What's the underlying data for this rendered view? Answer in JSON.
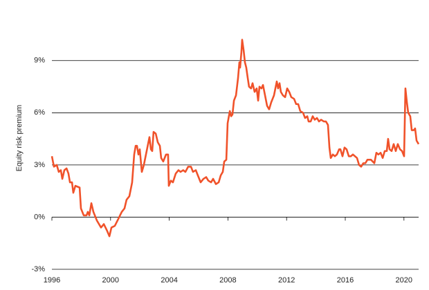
{
  "chart_data": {
    "type": "line",
    "y_label": "Equity risk premium",
    "xlim": [
      1996,
      2021
    ],
    "xticks": [
      1996,
      2000,
      2004,
      2008,
      2012,
      2016,
      2020
    ],
    "ylim": [
      -3,
      10.5
    ],
    "yticks": [
      {
        "value": -3,
        "label": "-3%"
      },
      {
        "value": 0,
        "label": "0%"
      },
      {
        "value": 3,
        "label": "3%"
      },
      {
        "value": 6,
        "label": "6%"
      },
      {
        "value": 9,
        "label": "9%"
      }
    ],
    "grid": true,
    "x": [
      1996.0,
      1996.14,
      1996.33,
      1996.47,
      1996.61,
      1996.71,
      1996.85,
      1997.0,
      1997.13,
      1997.23,
      1997.37,
      1997.46,
      1997.6,
      1997.89,
      1997.98,
      1998.17,
      1998.36,
      1998.45,
      1998.55,
      1998.69,
      1998.83,
      1999.07,
      1999.35,
      1999.54,
      1999.77,
      1999.92,
      2000.06,
      2000.29,
      2000.53,
      2000.76,
      2000.95,
      2001.09,
      2001.28,
      2001.47,
      2001.61,
      2001.71,
      2001.8,
      2001.9,
      2001.99,
      2002.13,
      2002.27,
      2002.46,
      2002.65,
      2002.75,
      2002.84,
      2002.93,
      2003.08,
      2003.22,
      2003.36,
      2003.45,
      2003.59,
      2003.78,
      2003.92,
      2003.97,
      2004.11,
      2004.25,
      2004.44,
      2004.63,
      2004.77,
      2004.95,
      2005.1,
      2005.29,
      2005.48,
      2005.62,
      2005.81,
      2005.95,
      2006.14,
      2006.33,
      2006.52,
      2006.66,
      2006.85,
      2006.99,
      2007.18,
      2007.37,
      2007.51,
      2007.65,
      2007.75,
      2007.89,
      2007.98,
      2008.13,
      2008.22,
      2008.31,
      2008.41,
      2008.55,
      2008.69,
      2008.78,
      2008.83,
      2008.92,
      2008.97,
      2009.07,
      2009.16,
      2009.25,
      2009.35,
      2009.44,
      2009.58,
      2009.68,
      2009.82,
      2009.96,
      2010.06,
      2010.15,
      2010.29,
      2010.39,
      2010.53,
      2010.67,
      2010.81,
      2010.95,
      2011.14,
      2011.33,
      2011.42,
      2011.52,
      2011.61,
      2011.75,
      2011.9,
      2012.04,
      2012.18,
      2012.32,
      2012.51,
      2012.65,
      2012.79,
      2012.93,
      2013.12,
      2013.26,
      2013.41,
      2013.5,
      2013.64,
      2013.78,
      2013.92,
      2014.07,
      2014.21,
      2014.35,
      2014.54,
      2014.68,
      2014.82,
      2014.92,
      2015.01,
      2015.15,
      2015.29,
      2015.43,
      2015.58,
      2015.67,
      2015.81,
      2015.95,
      2016.09,
      2016.24,
      2016.38,
      2016.52,
      2016.66,
      2016.8,
      2016.94,
      2017.08,
      2017.23,
      2017.37,
      2017.51,
      2017.75,
      2017.98,
      2018.12,
      2018.26,
      2018.41,
      2018.55,
      2018.69,
      2018.83,
      2018.92,
      2019.02,
      2019.16,
      2019.3,
      2019.44,
      2019.58,
      2019.73,
      2019.87,
      2020.01,
      2020.1,
      2020.2,
      2020.29,
      2020.43,
      2020.53,
      2020.67,
      2020.76,
      2020.86,
      2021.0
    ],
    "series": [
      {
        "color": "#f0522a",
        "values": [
          3.5,
          2.9,
          3.0,
          2.6,
          2.7,
          2.2,
          2.7,
          2.8,
          2.5,
          2.0,
          2.0,
          1.4,
          1.8,
          1.7,
          0.5,
          0.1,
          0.1,
          0.3,
          0.1,
          0.8,
          0.3,
          -0.2,
          -0.6,
          -0.4,
          -0.8,
          -1.1,
          -0.6,
          -0.5,
          -0.1,
          0.3,
          0.5,
          1.0,
          1.2,
          2.0,
          3.6,
          4.1,
          4.1,
          3.6,
          3.9,
          2.6,
          3.0,
          3.8,
          4.6,
          3.9,
          3.8,
          4.9,
          4.8,
          4.3,
          4.1,
          3.4,
          3.2,
          3.6,
          3.6,
          1.8,
          2.1,
          2.0,
          2.5,
          2.7,
          2.6,
          2.7,
          2.6,
          2.9,
          2.9,
          2.6,
          2.7,
          2.4,
          2.0,
          2.2,
          2.3,
          2.1,
          2.0,
          2.2,
          1.9,
          2.0,
          2.4,
          2.6,
          3.2,
          3.3,
          5.4,
          6.1,
          5.8,
          5.9,
          6.7,
          7.0,
          8.0,
          8.9,
          8.6,
          9.5,
          10.2,
          9.6,
          8.9,
          8.6,
          8.0,
          7.5,
          7.4,
          7.7,
          7.2,
          7.4,
          6.7,
          7.5,
          7.4,
          7.6,
          7.0,
          6.4,
          6.2,
          6.6,
          7.0,
          7.8,
          7.4,
          7.7,
          7.2,
          7.0,
          6.9,
          7.4,
          7.2,
          6.9,
          6.8,
          6.5,
          6.5,
          6.1,
          6.0,
          5.7,
          5.8,
          5.5,
          5.5,
          5.8,
          5.6,
          5.7,
          5.5,
          5.6,
          5.5,
          5.5,
          5.3,
          4.0,
          3.4,
          3.6,
          3.5,
          3.6,
          3.9,
          3.9,
          3.5,
          4.0,
          3.9,
          3.5,
          3.5,
          3.6,
          3.5,
          3.4,
          3.0,
          2.9,
          3.1,
          3.1,
          3.3,
          3.3,
          3.1,
          3.7,
          3.6,
          3.7,
          3.4,
          3.8,
          3.8,
          4.5,
          3.9,
          3.8,
          4.2,
          3.8,
          4.2,
          3.9,
          3.8,
          3.5,
          7.4,
          6.6,
          6.0,
          5.8,
          5.0,
          5.0,
          5.1,
          4.4,
          4.2
        ]
      }
    ]
  }
}
